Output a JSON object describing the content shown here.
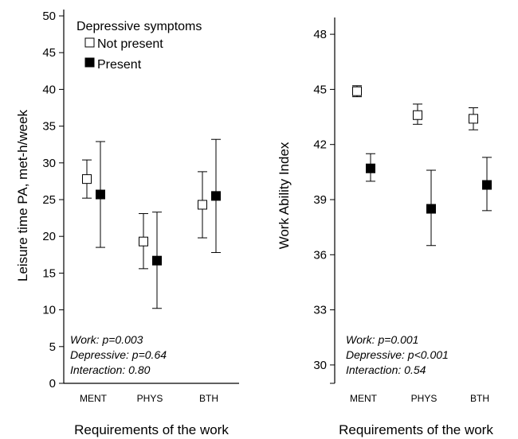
{
  "chart_data": [
    {
      "type": "scatter",
      "error_bars": true,
      "ylabel": "Leisure time PA, met-h/week",
      "xlabel": "Requirements of the work",
      "ylim": [
        0,
        50
      ],
      "yticks": [
        "0",
        "5",
        "10",
        "15",
        "20",
        "25",
        "30",
        "35",
        "40",
        "45",
        "50"
      ],
      "categories": [
        "MENT",
        "PHYS",
        "BTH"
      ],
      "legend": {
        "title": "Depressive symptoms",
        "position": "top-left",
        "entries": [
          "Not present",
          "Present"
        ]
      },
      "series": [
        {
          "name": "Not present",
          "marker": "open-square",
          "values": [
            27.8,
            19.3,
            24.3
          ],
          "lower": [
            25.2,
            15.6,
            19.8
          ],
          "upper": [
            30.4,
            23.1,
            28.8
          ]
        },
        {
          "name": "Present",
          "marker": "filled-square",
          "values": [
            25.7,
            16.7,
            25.5
          ],
          "lower": [
            18.5,
            10.2,
            17.8
          ],
          "upper": [
            32.9,
            23.3,
            33.2
          ]
        }
      ],
      "annotations": [
        "Work: p=0.003",
        "Depressive: p=0.64",
        "Interaction: 0.80"
      ]
    },
    {
      "type": "scatter",
      "error_bars": true,
      "ylabel": "Work Ability Index",
      "xlabel": "Requirements of the work",
      "ylim": [
        29,
        49
      ],
      "yticks": [
        "30",
        "33",
        "36",
        "39",
        "42",
        "45",
        "48"
      ],
      "categories": [
        "MENT",
        "PHYS",
        "BTH"
      ],
      "series": [
        {
          "name": "Not present",
          "marker": "open-square",
          "values": [
            44.9,
            43.6,
            43.4
          ],
          "lower": [
            44.6,
            43.1,
            42.8
          ],
          "upper": [
            45.2,
            44.2,
            44.0
          ]
        },
        {
          "name": "Present",
          "marker": "filled-square",
          "values": [
            40.7,
            38.5,
            39.8
          ],
          "lower": [
            40.0,
            36.5,
            38.4
          ],
          "upper": [
            41.5,
            40.6,
            41.3
          ]
        }
      ],
      "annotations": [
        "Work: p=0.001",
        "Depressive: p<0.001",
        "Interaction: 0.54"
      ]
    }
  ]
}
